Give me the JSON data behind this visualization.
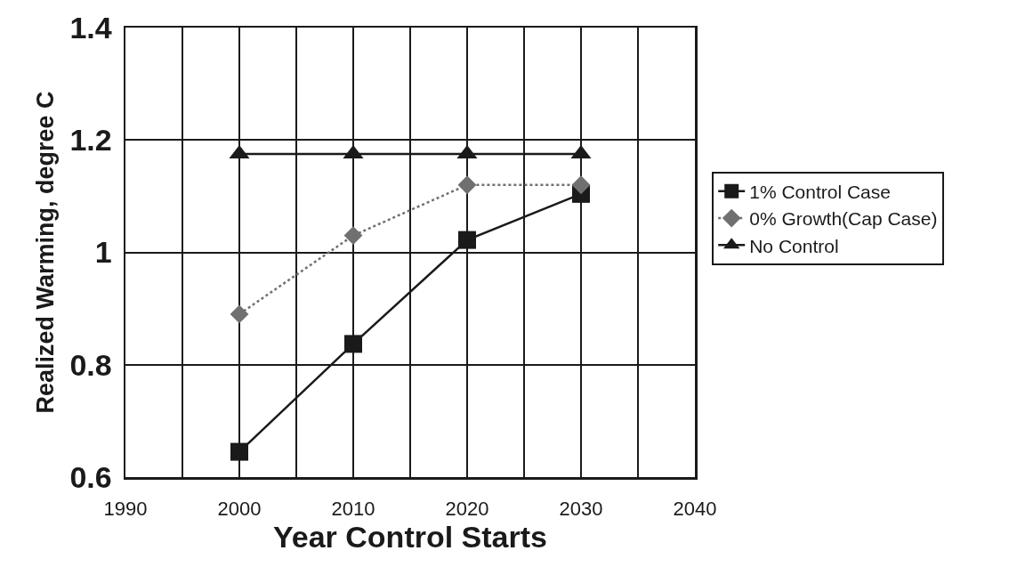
{
  "chart_data": {
    "type": "line",
    "xlabel": "Year Control Starts",
    "ylabel": "Realized Warming, degree C",
    "x": [
      2000,
      2010,
      2020,
      2030
    ],
    "series": [
      {
        "name": "1% Control Case",
        "color": "#1a1a1a",
        "values": [
          0.645,
          0.837,
          1.022,
          1.104
        ],
        "marker": "square",
        "line_style": "solid"
      },
      {
        "name": "0% Growth(Cap Case)",
        "color": "#707070",
        "values": [
          0.89,
          1.03,
          1.12,
          1.12
        ],
        "marker": "diamond",
        "line_style": "dotted"
      },
      {
        "name": "No Control",
        "color": "#1a1a1a",
        "values": [
          1.175,
          1.175,
          1.175,
          1.175
        ],
        "marker": "triangle",
        "line_style": "solid"
      }
    ],
    "xlim": [
      1990,
      2040
    ],
    "xticks": [
      1990,
      {
        "value": 1995,
        "label": null
      },
      2000,
      {
        "value": 2005,
        "label": null
      },
      2010,
      {
        "value": 2015,
        "label": null
      },
      2020,
      {
        "value": 2025,
        "label": null
      },
      2030,
      {
        "value": 2035,
        "label": null
      },
      2040
    ],
    "ylim": [
      0.6,
      1.4
    ],
    "yticks": [
      0.6,
      0.8,
      1,
      1.2,
      1.4
    ],
    "grid": true,
    "legend": "right"
  }
}
